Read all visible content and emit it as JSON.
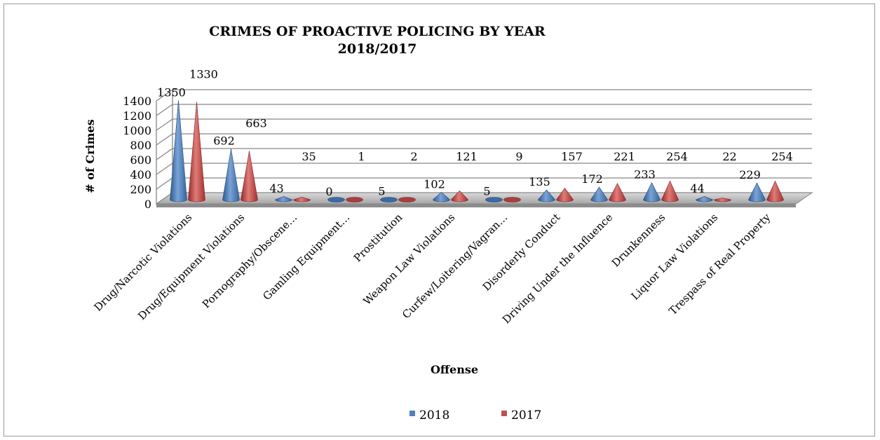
{
  "chart_data": {
    "type": "bar",
    "subtype": "3d-cone",
    "title": "CRIMES OF PROACTIVE POLICING BY YEAR",
    "subtitle": "2018/2017",
    "xlabel": "Offense",
    "ylabel": "# of Crimes",
    "ylim": [
      0,
      1400
    ],
    "yticks": [
      0,
      200,
      400,
      600,
      800,
      1000,
      1200,
      1400
    ],
    "grid": true,
    "legend_position": "bottom",
    "categories": [
      "Drug/Narcotic Violations",
      "Drug/Equipment Violations",
      "Pornography/Obscene…",
      "Gamling Equipment…",
      "Prostitution",
      "Weapon Law Violations",
      "Curfew/Loitering/Vagran…",
      "Disorderly Conduct",
      "Driving Under the Influence",
      "Drunkenness",
      "Liquor Law Violations",
      "Trespass of Real Property"
    ],
    "series": [
      {
        "name": "2018",
        "color": "#4f81bd",
        "values": [
          1350,
          692,
          43,
          0,
          5,
          102,
          5,
          135,
          172,
          233,
          44,
          229
        ]
      },
      {
        "name": "2017",
        "color": "#c0504d",
        "values": [
          1330,
          663,
          35,
          1,
          2,
          121,
          9,
          157,
          221,
          254,
          22,
          254
        ]
      }
    ]
  }
}
